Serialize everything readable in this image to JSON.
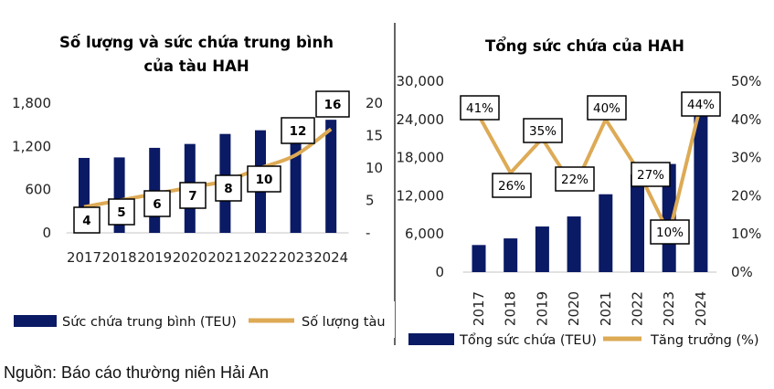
{
  "colors": {
    "bar": "#0a1a64",
    "line": "#ddaa55",
    "divider": "#000000",
    "baseline": "#d9d9d9"
  },
  "source": "Nguồn: Báo cáo thường niên Hải An",
  "chart_data": [
    {
      "type": "bar+line",
      "title": [
        "Số lượng và sức chứa trung bình",
        "của tàu HAH"
      ],
      "categories": [
        "2017",
        "2018",
        "2019",
        "2020",
        "2021",
        "2022",
        "2023",
        "2024"
      ],
      "series": [
        {
          "name": "Sức chứa trung bình (TEU)",
          "type": "bar",
          "axis": "left",
          "values": [
            1040,
            1047,
            1180,
            1234,
            1373,
            1424,
            1420,
            1570
          ]
        },
        {
          "name": "Số lượng tàu",
          "type": "line",
          "axis": "right",
          "values": [
            4,
            5,
            6,
            7,
            8,
            10,
            12,
            16
          ],
          "data_labels": [
            "4",
            "5",
            "6",
            "7",
            "8",
            "10",
            "12",
            "16"
          ]
        }
      ],
      "y_left": {
        "ylim": [
          0,
          1800
        ],
        "ticks": [
          "0",
          "600",
          "1,200",
          "1,800"
        ]
      },
      "y_right": {
        "ylim": [
          0,
          20
        ],
        "ticks": [
          "-",
          "5",
          "10",
          "15",
          "20"
        ]
      },
      "grid": false,
      "legend": "bottom"
    },
    {
      "type": "bar+line",
      "title": [
        "Tổng sức chứa của HAH"
      ],
      "categories": [
        "2017",
        "2018",
        "2019",
        "2020",
        "2021",
        "2022",
        "2023",
        "2024"
      ],
      "series": [
        {
          "name": "Tổng sức chứa (TEU)",
          "type": "bar",
          "axis": "left",
          "values": [
            4260,
            5300,
            7170,
            8750,
            12240,
            15350,
            17000,
            24580
          ]
        },
        {
          "name": "Tăng trưởng (%)",
          "type": "line",
          "axis": "right",
          "values": [
            41,
            26,
            35,
            22,
            40,
            27,
            10,
            44
          ],
          "data_labels": [
            "41%",
            "26%",
            "35%",
            "22%",
            "40%",
            "27%",
            "10%",
            "44%"
          ]
        }
      ],
      "y_left": {
        "ylim": [
          0,
          30000
        ],
        "ticks": [
          "0",
          "6,000",
          "12,000",
          "18,000",
          "24,000",
          "30,000"
        ]
      },
      "y_right": {
        "ylim": [
          0,
          50
        ],
        "ticks": [
          "0%",
          "10%",
          "20%",
          "30%",
          "40%",
          "50%"
        ]
      },
      "grid": false,
      "legend": "bottom"
    }
  ]
}
